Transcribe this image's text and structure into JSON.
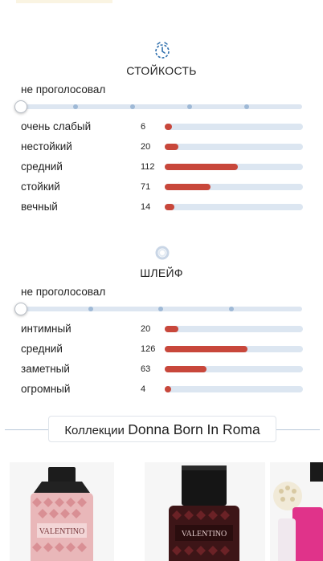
{
  "longevity": {
    "title": "СТОЙКОСТЬ",
    "icon": "clock-icon",
    "no_vote": "не проголосовал",
    "rows": [
      {
        "label": "очень слабый",
        "count": "6",
        "fraction": 0.05
      },
      {
        "label": "нестойкий",
        "count": "20",
        "fraction": 0.1
      },
      {
        "label": "средний",
        "count": "112",
        "fraction": 0.53
      },
      {
        "label": "стойкий",
        "count": "71",
        "fraction": 0.33
      },
      {
        "label": "вечный",
        "count": "14",
        "fraction": 0.07
      }
    ]
  },
  "sillage": {
    "title": "ШЛЕЙФ",
    "icon": "sillage-ring-icon",
    "no_vote": "не проголосовал",
    "rows": [
      {
        "label": "интимный",
        "count": "20",
        "fraction": 0.1
      },
      {
        "label": "средний",
        "count": "126",
        "fraction": 0.6
      },
      {
        "label": "заметный",
        "count": "63",
        "fraction": 0.3
      },
      {
        "label": "огромный",
        "count": "4",
        "fraction": 0.03
      }
    ]
  },
  "collections": {
    "prefix": "Коллекции",
    "name": "Donna Born In Roma"
  },
  "products": [
    {
      "image": "pink-studded-perfume-bottle",
      "brand_mark": "VALENTINO"
    },
    {
      "image": "dark-red-studded-perfume-bottle",
      "brand_mark": "VALENTINO"
    },
    {
      "image": "magenta-studded-perfume-bottle",
      "brand_mark": ""
    }
  ],
  "colors": {
    "bar_fill": "#c8473b",
    "bar_track": "#dce6f1",
    "accent_icon": "#2f6fad"
  }
}
